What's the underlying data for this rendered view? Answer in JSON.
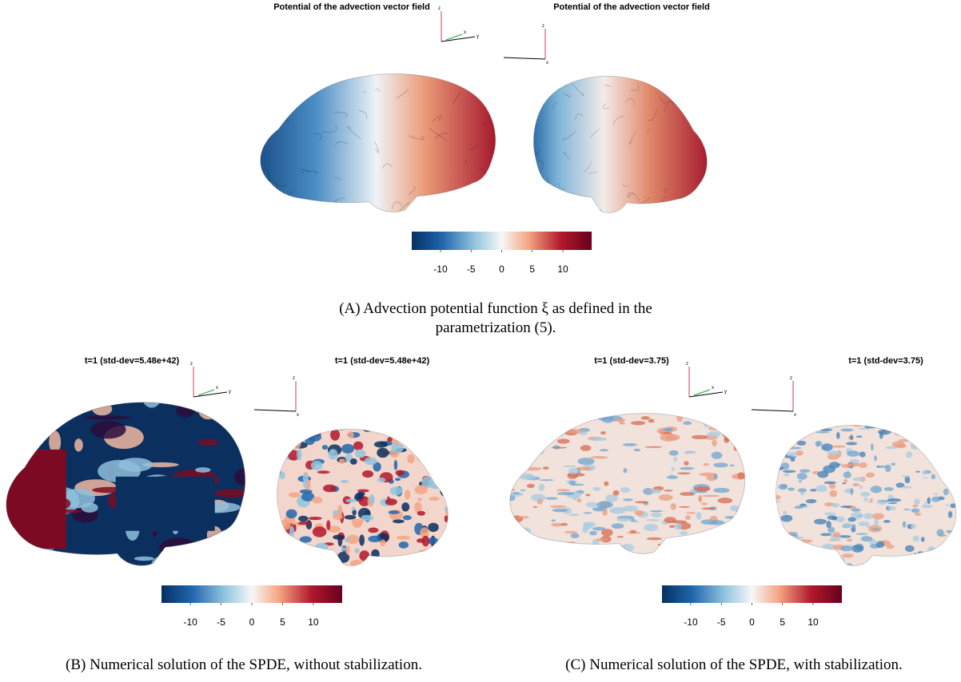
{
  "axis_labels": {
    "x": "x",
    "y": "y",
    "z": "z"
  },
  "panels": [
    {
      "titles": [
        "Potential of the advection vector field",
        "Potential of the advection vector field"
      ],
      "colorbar": {
        "limits": [
          -14.7,
          14.7
        ],
        "ticks": [
          -10,
          -5,
          0,
          5,
          10
        ]
      },
      "caption": [
        "(A) Advection potential function ξ as defined in the",
        "parametrization (5)."
      ]
    },
    {
      "titles": [
        "t=1  (std-dev=5.48e+42)",
        "t=1  (std-dev=5.48e+42)"
      ],
      "colorbar": {
        "limits": [
          -14.7,
          14.7
        ],
        "ticks": [
          -10,
          -5,
          0,
          5,
          10
        ]
      },
      "caption": [
        "(B) Numerical solution of the SPDE, without stabilization."
      ]
    },
    {
      "titles": [
        "t=1  (std-dev=3.75)",
        "t=1  (std-dev=3.75)"
      ],
      "colorbar": {
        "limits": [
          -14.7,
          14.7
        ],
        "ticks": [
          -10,
          -5,
          0,
          5,
          10
        ]
      },
      "caption": [
        "(C) Numerical solution of the SPDE, with stabilization."
      ]
    }
  ]
}
